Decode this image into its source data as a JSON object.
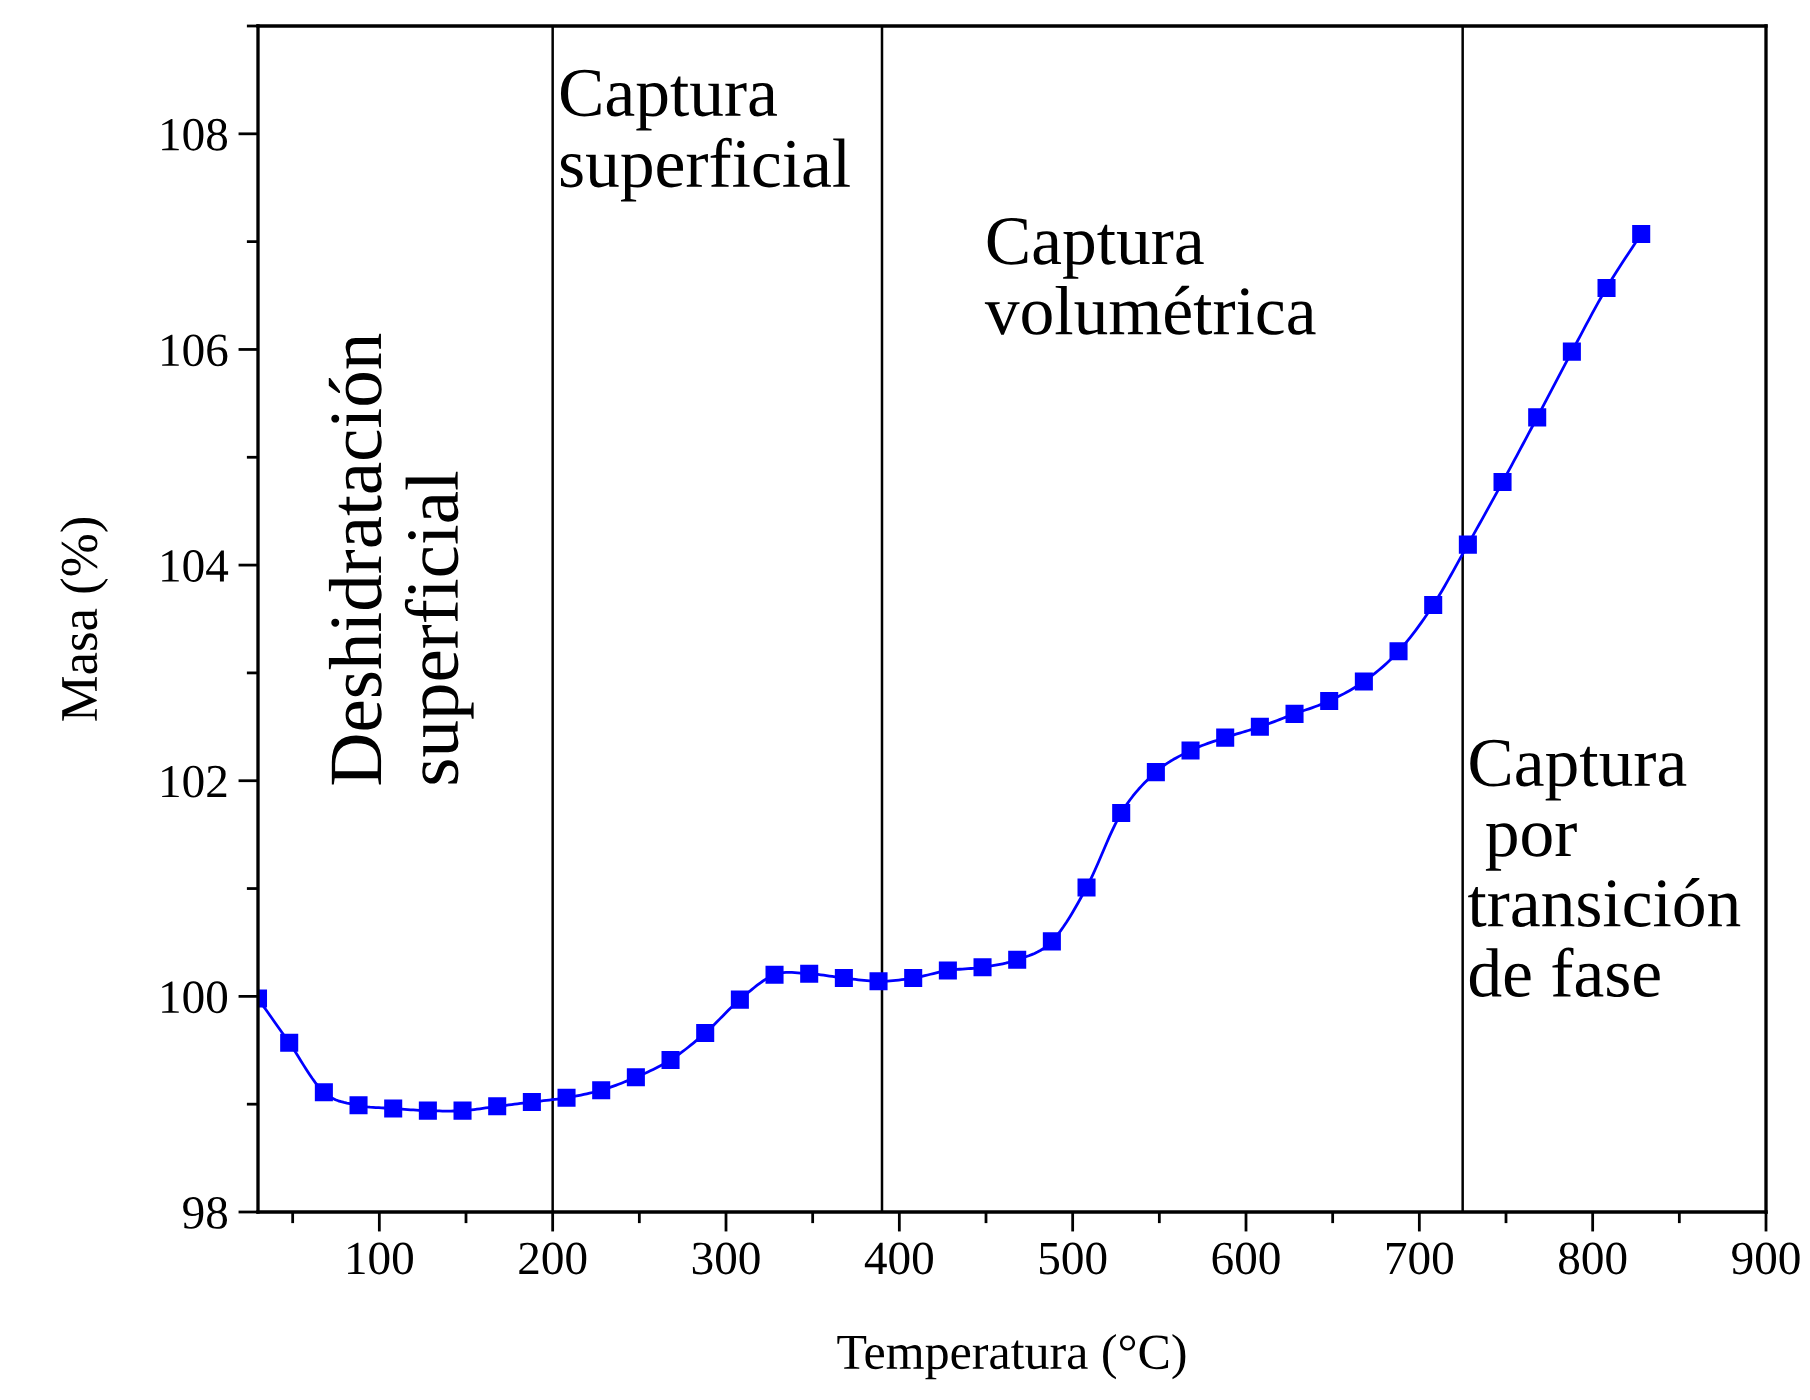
{
  "chart_data": {
    "type": "line",
    "xlabel": "Temperatura (°C)",
    "ylabel": "Masa (%)",
    "xlim": [
      30,
      900
    ],
    "xticks": [
      100,
      200,
      300,
      400,
      500,
      600,
      700,
      800,
      900
    ],
    "ylim": [
      98,
      109
    ],
    "yticks": [
      98,
      100,
      102,
      104,
      106,
      108
    ],
    "grid": false,
    "legend": false,
    "marker": "square",
    "line_style": "solid",
    "series": [
      {
        "color": "#0000ff",
        "x": [
          30,
          48,
          68,
          88,
          108,
          128,
          148,
          168,
          188,
          208,
          228,
          248,
          268,
          288,
          308,
          328,
          348,
          368,
          388,
          408,
          428,
          448,
          468,
          488,
          508,
          528,
          548,
          568,
          588,
          608,
          628,
          648,
          668,
          688,
          708,
          728,
          748,
          768,
          788,
          808,
          828
        ],
        "values": [
          99.98,
          99.57,
          99.11,
          98.99,
          98.96,
          98.94,
          98.94,
          98.98,
          99.02,
          99.06,
          99.13,
          99.25,
          99.41,
          99.66,
          99.97,
          100.2,
          100.21,
          100.17,
          100.14,
          100.17,
          100.24,
          100.27,
          100.34,
          100.51,
          101.01,
          101.7,
          102.08,
          102.28,
          102.4,
          102.5,
          102.62,
          102.74,
          102.92,
          103.2,
          103.63,
          104.19,
          104.77,
          105.37,
          105.98,
          106.57,
          107.07
        ]
      }
    ],
    "ref_lines": [
      {
        "axis": "x",
        "value": 200,
        "color": "#000000"
      },
      {
        "axis": "x",
        "value": 390,
        "color": "#000000"
      },
      {
        "axis": "x",
        "value": 725,
        "color": "#000000"
      }
    ],
    "annotations": [
      "Deshidratación\nsuperficial",
      "Captura\nsuperficial",
      "Captura\nvolumétrica",
      "Captura\n por\ntransición\nde fase"
    ]
  }
}
